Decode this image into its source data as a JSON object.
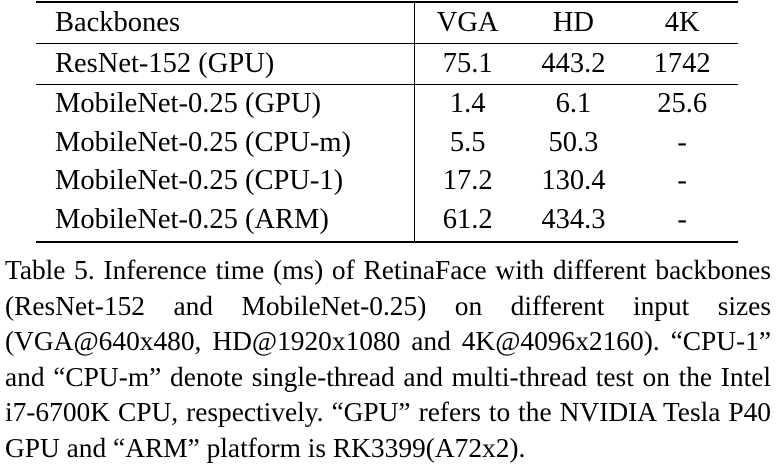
{
  "table": {
    "headers": [
      "Backbones",
      "VGA",
      "HD",
      "4K"
    ],
    "rows": [
      {
        "backbone": "ResNet-152 (GPU)",
        "vga": "75.1",
        "hd": "443.2",
        "k4": "1742"
      },
      {
        "backbone": "MobileNet-0.25 (GPU)",
        "vga": "1.4",
        "hd": "6.1",
        "k4": "25.6"
      },
      {
        "backbone": "MobileNet-0.25 (CPU-m)",
        "vga": "5.5",
        "hd": "50.3",
        "k4": "-"
      },
      {
        "backbone": "MobileNet-0.25 (CPU-1)",
        "vga": "17.2",
        "hd": "130.4",
        "k4": "-"
      },
      {
        "backbone": "MobileNet-0.25 (ARM)",
        "vga": "61.2",
        "hd": "434.3",
        "k4": "-"
      }
    ]
  },
  "caption": "Table 5. Inference time (ms) of RetinaFace with different backbones (ResNet-152 and MobileNet-0.25) on different input sizes (VGA@640x480, HD@1920x1080 and 4K@4096x2160). “CPU-1” and “CPU-m” denote single-thread and multi-thread test on the Intel i7-6700K CPU, respectively. “GPU” refers to the NVIDIA Tesla P40 GPU and “ARM” platform is RK3399(A72x2)."
}
